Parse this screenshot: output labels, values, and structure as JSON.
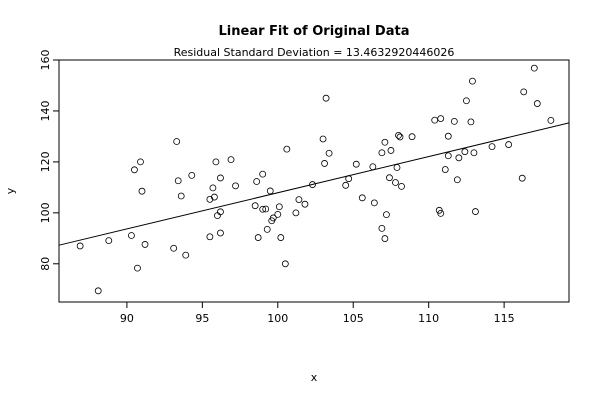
{
  "chart_data": {
    "type": "scatter",
    "title": "Linear Fit of Original Data",
    "subtitle": "Residual Standard Deviation =  13.4632920446026",
    "xlabel": "x",
    "ylabel": "y",
    "xlim": [
      85.5,
      119.3
    ],
    "ylim": [
      65,
      160
    ],
    "xticks": [
      90,
      95,
      100,
      105,
      110,
      115
    ],
    "yticks": [
      80,
      100,
      120,
      140,
      160
    ],
    "grid": false,
    "fit_line": {
      "x": [
        85.5,
        119.3
      ],
      "y": [
        87.3,
        135.3
      ]
    },
    "points": [
      [
        86.9,
        87.0
      ],
      [
        88.1,
        69.4
      ],
      [
        88.8,
        89.1
      ],
      [
        90.3,
        91.1
      ],
      [
        90.5,
        116.9
      ],
      [
        90.7,
        78.3
      ],
      [
        90.9,
        120.0
      ],
      [
        91.0,
        108.5
      ],
      [
        91.2,
        87.6
      ],
      [
        93.1,
        86.1
      ],
      [
        93.3,
        128.0
      ],
      [
        93.4,
        112.6
      ],
      [
        93.6,
        106.6
      ],
      [
        93.9,
        83.4
      ],
      [
        94.3,
        114.7
      ],
      [
        95.5,
        90.6
      ],
      [
        95.5,
        105.3
      ],
      [
        95.7,
        109.8
      ],
      [
        95.8,
        106.2
      ],
      [
        95.9,
        120.0
      ],
      [
        96.0,
        98.9
      ],
      [
        96.2,
        100.4
      ],
      [
        96.2,
        113.7
      ],
      [
        96.2,
        92.1
      ],
      [
        96.9,
        120.9
      ],
      [
        97.2,
        110.6
      ],
      [
        98.5,
        102.8
      ],
      [
        98.6,
        112.3
      ],
      [
        98.7,
        90.3
      ],
      [
        99.0,
        115.2
      ],
      [
        99.0,
        101.4
      ],
      [
        99.2,
        101.5
      ],
      [
        99.3,
        93.5
      ],
      [
        99.5,
        108.6
      ],
      [
        99.6,
        96.9
      ],
      [
        99.7,
        98.0
      ],
      [
        100.0,
        99.4
      ],
      [
        100.1,
        102.4
      ],
      [
        100.2,
        90.3
      ],
      [
        100.5,
        80.0
      ],
      [
        100.6,
        125.0
      ],
      [
        101.2,
        100.0
      ],
      [
        101.4,
        105.2
      ],
      [
        101.8,
        103.4
      ],
      [
        102.3,
        111.1
      ],
      [
        103.0,
        129.0
      ],
      [
        103.1,
        119.4
      ],
      [
        103.2,
        145.0
      ],
      [
        103.4,
        123.4
      ],
      [
        104.5,
        110.8
      ],
      [
        104.7,
        113.4
      ],
      [
        105.2,
        119.1
      ],
      [
        105.6,
        105.9
      ],
      [
        106.3,
        118.1
      ],
      [
        106.4,
        103.9
      ],
      [
        106.9,
        93.9
      ],
      [
        106.9,
        123.6
      ],
      [
        107.1,
        89.9
      ],
      [
        107.1,
        127.7
      ],
      [
        107.2,
        99.3
      ],
      [
        107.4,
        113.8
      ],
      [
        107.5,
        124.5
      ],
      [
        107.8,
        111.9
      ],
      [
        107.9,
        117.8
      ],
      [
        108.0,
        130.4
      ],
      [
        108.1,
        129.8
      ],
      [
        108.2,
        110.4
      ],
      [
        108.9,
        129.9
      ],
      [
        110.4,
        136.4
      ],
      [
        110.7,
        101.0
      ],
      [
        110.8,
        99.8
      ],
      [
        110.8,
        137.0
      ],
      [
        111.1,
        117.0
      ],
      [
        111.3,
        122.4
      ],
      [
        111.3,
        130.1
      ],
      [
        111.7,
        135.9
      ],
      [
        111.9,
        113.0
      ],
      [
        112.0,
        121.6
      ],
      [
        112.4,
        124.0
      ],
      [
        112.5,
        144.0
      ],
      [
        112.8,
        135.7
      ],
      [
        112.9,
        151.7
      ],
      [
        113.0,
        123.6
      ],
      [
        113.1,
        100.5
      ],
      [
        114.2,
        126.0
      ],
      [
        115.3,
        126.8
      ],
      [
        116.2,
        113.6
      ],
      [
        116.3,
        147.5
      ],
      [
        117.0,
        156.8
      ],
      [
        117.2,
        142.9
      ],
      [
        118.1,
        136.3
      ]
    ]
  }
}
